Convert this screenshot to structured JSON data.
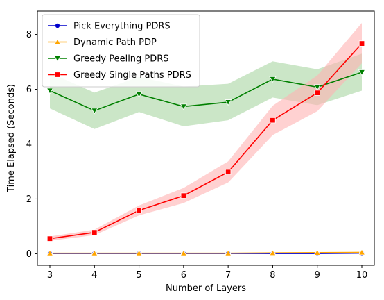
{
  "chart_data": {
    "type": "line",
    "title": "",
    "xlabel": "Number of Layers",
    "ylabel": "Time Elapsed (Seconds)",
    "x": [
      3,
      4,
      5,
      6,
      7,
      8,
      9,
      10
    ],
    "xlim": [
      2.72,
      10.28
    ],
    "ylim": [
      -0.42,
      8.85
    ],
    "xticks": [
      3,
      4,
      5,
      6,
      7,
      8,
      9,
      10
    ],
    "yticks": [
      0,
      2,
      4,
      6,
      8
    ],
    "grid": false,
    "legend_position": "top-left",
    "series": [
      {
        "name": "Pick Everything PDRS",
        "color": "#0000cc",
        "marker": "circle",
        "values": [
          0.01,
          0.01,
          0.01,
          0.01,
          0.01,
          0.01,
          0.01,
          0.02
        ],
        "band_lower": [
          0.0,
          0.0,
          0.0,
          0.0,
          0.0,
          0.0,
          0.0,
          0.01
        ],
        "band_upper": [
          0.02,
          0.02,
          0.02,
          0.02,
          0.02,
          0.02,
          0.02,
          0.03
        ]
      },
      {
        "name": "Dynamic Path PDP",
        "color": "#ffa500",
        "marker": "triangle-up",
        "values": [
          0.02,
          0.02,
          0.02,
          0.02,
          0.02,
          0.03,
          0.04,
          0.05
        ],
        "band_lower": [
          0.01,
          0.01,
          0.01,
          0.01,
          0.01,
          0.02,
          0.03,
          0.04
        ],
        "band_upper": [
          0.03,
          0.03,
          0.03,
          0.03,
          0.03,
          0.04,
          0.05,
          0.06
        ]
      },
      {
        "name": "Greedy Peeling PDRS",
        "color": "#008000",
        "band_color": "#a8d5a2",
        "marker": "triangle-down",
        "values": [
          5.95,
          5.22,
          5.82,
          5.37,
          5.53,
          6.37,
          6.08,
          6.62
        ],
        "band_lower": [
          5.3,
          4.55,
          5.17,
          4.65,
          4.87,
          5.7,
          5.42,
          5.95
        ],
        "band_upper": [
          6.6,
          5.88,
          6.45,
          6.1,
          6.2,
          7.02,
          6.73,
          7.3
        ]
      },
      {
        "name": "Greedy Single Paths PDRS",
        "color": "#ff0000",
        "band_color": "#ffb3b3",
        "marker": "square",
        "values": [
          0.55,
          0.78,
          1.58,
          2.12,
          2.98,
          4.87,
          5.87,
          7.67
        ],
        "band_lower": [
          0.47,
          0.68,
          1.4,
          1.85,
          2.6,
          4.33,
          5.2,
          6.95
        ],
        "band_upper": [
          0.63,
          0.88,
          1.76,
          2.4,
          3.37,
          5.4,
          6.5,
          8.42
        ]
      }
    ]
  }
}
